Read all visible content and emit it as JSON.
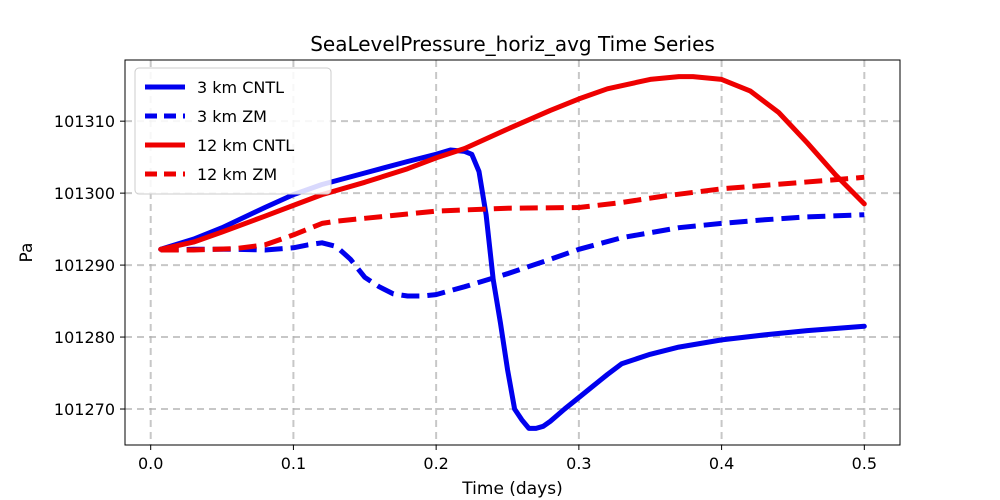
{
  "chart_data": {
    "type": "line",
    "title": "SeaLevelPressure_horiz_avg Time Series",
    "xlabel": "Time (days)",
    "ylabel": "Pa",
    "xlim": [
      -0.018,
      0.525
    ],
    "ylim": [
      101265,
      101318.5
    ],
    "xticks": [
      0.0,
      0.1,
      0.2,
      0.3,
      0.4,
      0.5
    ],
    "xtick_labels": [
      "0.0",
      "0.1",
      "0.2",
      "0.3",
      "0.4",
      "0.5"
    ],
    "yticks": [
      101270,
      101280,
      101290,
      101300,
      101310
    ],
    "ytick_labels": [
      "101270",
      "101280",
      "101290",
      "101300",
      "101310"
    ],
    "grid": true,
    "legend_position": "top-left",
    "series": [
      {
        "name": "3 km CNTL",
        "color": "#0000ee",
        "dash": "solid",
        "x": [
          0.007,
          0.03,
          0.05,
          0.08,
          0.1,
          0.12,
          0.15,
          0.18,
          0.2,
          0.21,
          0.22,
          0.225,
          0.23,
          0.235,
          0.24,
          0.245,
          0.25,
          0.255,
          0.26,
          0.265,
          0.27,
          0.275,
          0.28,
          0.29,
          0.3,
          0.31,
          0.32,
          0.33,
          0.35,
          0.37,
          0.4,
          0.43,
          0.46,
          0.5
        ],
        "y": [
          101292.2,
          101293.6,
          101295.2,
          101298,
          101299.8,
          101301.2,
          101302.8,
          101304.4,
          101305.4,
          101306,
          101305.8,
          101305.4,
          101303,
          101297,
          101288,
          101282,
          101275.5,
          101270,
          101268.5,
          101267.3,
          101267.3,
          101267.6,
          101268.3,
          101270,
          101271.6,
          101273.2,
          101274.8,
          101276.3,
          101277.6,
          101278.6,
          101279.6,
          101280.3,
          101280.9,
          101281.5
        ]
      },
      {
        "name": "3 km ZM",
        "color": "#0000ee",
        "dash": "dashed",
        "x": [
          0.007,
          0.03,
          0.06,
          0.08,
          0.1,
          0.11,
          0.12,
          0.13,
          0.14,
          0.15,
          0.16,
          0.17,
          0.18,
          0.19,
          0.2,
          0.22,
          0.25,
          0.28,
          0.3,
          0.33,
          0.37,
          0.4,
          0.43,
          0.46,
          0.5
        ],
        "y": [
          101292.1,
          101292.2,
          101292.2,
          101292.1,
          101292.4,
          101292.8,
          101293.1,
          101292.6,
          101290.8,
          101288.3,
          101287,
          101286,
          101285.7,
          101285.7,
          101285.9,
          101287,
          101288.8,
          101290.8,
          101292.2,
          101293.8,
          101295.2,
          101295.8,
          101296.3,
          101296.7,
          101297
        ]
      },
      {
        "name": "12 km CNTL",
        "color": "#ee0000",
        "dash": "solid",
        "x": [
          0.007,
          0.03,
          0.05,
          0.08,
          0.1,
          0.12,
          0.15,
          0.18,
          0.2,
          0.22,
          0.25,
          0.28,
          0.3,
          0.32,
          0.35,
          0.37,
          0.38,
          0.4,
          0.42,
          0.44,
          0.46,
          0.48,
          0.5
        ],
        "y": [
          101292.2,
          101293.2,
          101294.6,
          101296.8,
          101298.3,
          101299.8,
          101301.5,
          101303.4,
          101304.9,
          101306.2,
          101308.9,
          101311.5,
          101313.1,
          101314.5,
          101315.8,
          101316.2,
          101316.2,
          101315.8,
          101314.2,
          101311.2,
          101307,
          101302.5,
          101298.5
        ]
      },
      {
        "name": "12 km ZM",
        "color": "#ee0000",
        "dash": "dashed",
        "x": [
          0.007,
          0.03,
          0.06,
          0.08,
          0.1,
          0.12,
          0.13,
          0.15,
          0.18,
          0.2,
          0.25,
          0.3,
          0.33,
          0.36,
          0.4,
          0.45,
          0.5
        ],
        "y": [
          101292.1,
          101292.1,
          101292.3,
          101292.8,
          101294.2,
          101295.8,
          101296.1,
          101296.5,
          101297.1,
          101297.5,
          101297.9,
          101298,
          101298.7,
          101299.6,
          101300.6,
          101301.4,
          101302.2
        ]
      }
    ]
  }
}
